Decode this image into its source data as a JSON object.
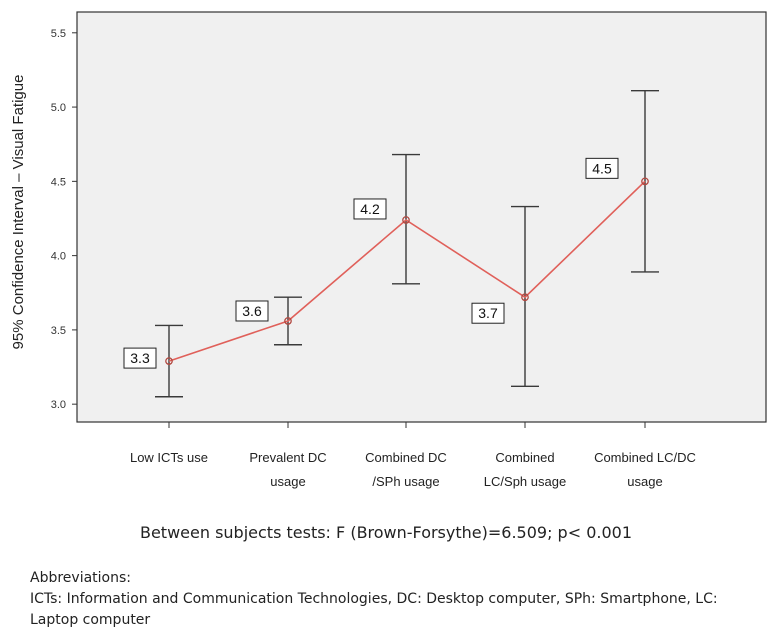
{
  "chart_data": {
    "type": "line",
    "ylabel": "95% Confidence Interval – Visual Fatigue",
    "ylim": [
      2.88,
      5.64
    ],
    "yticks": [
      "3.0",
      "3.5",
      "4.0",
      "4.5",
      "5.0",
      "5.5"
    ],
    "categories": [
      [
        "Low ICTs use"
      ],
      [
        "Prevalent DC",
        "usage"
      ],
      [
        "Combined DC",
        "/SPh usage"
      ],
      [
        "Combined",
        "LC/Sph usage"
      ],
      [
        "Combined LC/DC",
        "usage"
      ]
    ],
    "series": [
      {
        "means": [
          3.29,
          3.56,
          4.24,
          3.72,
          4.5
        ],
        "lower": [
          3.05,
          3.4,
          3.81,
          3.12,
          3.89
        ],
        "upper": [
          3.53,
          3.72,
          4.68,
          4.33,
          5.11
        ],
        "labels": [
          "3.3",
          "3.6",
          "4.2",
          "3.7",
          "4.5"
        ]
      }
    ],
    "colors": {
      "line": "#e0605a",
      "errorbar": "#3a3a3a",
      "plot_bg": "#f0f0f0",
      "frame": "#333333"
    }
  },
  "footer": {
    "stat": "Between subjects tests:  F (Brown-Forsythe)=6.509; p< 0.001",
    "abbr_title": "Abbreviations:",
    "abbr_text": "ICTs: Information and Communication Technologies, DC: Desktop computer, SPh: Smartphone, LC: Laptop computer"
  }
}
